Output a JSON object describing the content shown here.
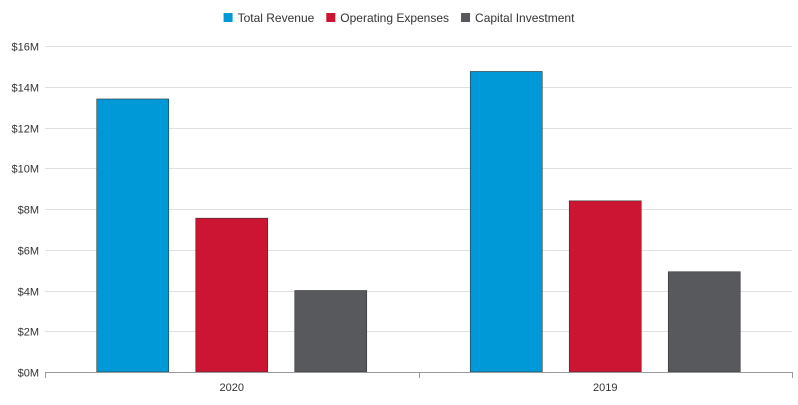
{
  "chart_data": {
    "type": "bar",
    "categories": [
      "2020",
      "2019"
    ],
    "series": [
      {
        "name": "Total Revenue",
        "values": [
          13.4,
          14.75
        ],
        "color": "#0099d8"
      },
      {
        "name": "Operating Expenses",
        "values": [
          7.55,
          8.4
        ],
        "color": "#cc1433"
      },
      {
        "name": "Capital Investment",
        "values": [
          4.0,
          4.92
        ],
        "color": "#57595c"
      }
    ],
    "ylim": [
      0,
      16
    ],
    "yticks": [
      {
        "value": 0,
        "label": "$0M"
      },
      {
        "value": 2,
        "label": "$2M"
      },
      {
        "value": 4,
        "label": "$4M"
      },
      {
        "value": 6,
        "label": "$6M"
      },
      {
        "value": 8,
        "label": "$8M"
      },
      {
        "value": 10,
        "label": "$10M"
      },
      {
        "value": 12,
        "label": "$12M"
      },
      {
        "value": 14,
        "label": "$14M"
      },
      {
        "value": 16,
        "label": "$16M"
      }
    ],
    "grid": true,
    "legend_position": "top-center",
    "gridline_color": "#e0e0e0",
    "axis_color": "#999999"
  }
}
